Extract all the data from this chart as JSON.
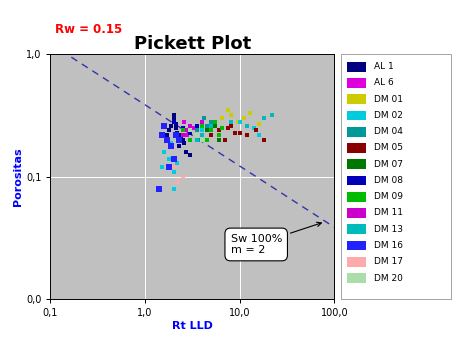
{
  "title": "Pickett Plot",
  "xlabel": "Rt LLD",
  "ylabel": "Porositas",
  "rw_label": "Rw = 0.15",
  "xlim": [
    0.1,
    100.0
  ],
  "ylim": [
    0.01,
    1.0
  ],
  "bg_color": "#c0c0c0",
  "fig_color": "#f0f0f0",
  "grid_color": "white",
  "dashed_line_color": "#3333aa",
  "annotation_text": "Sw 100%\nm = 2",
  "legend_entries": [
    {
      "label": "AL 1",
      "color": "#000080",
      "marker": "s"
    },
    {
      "label": "AL 6",
      "color": "#dd00dd",
      "marker": "s"
    },
    {
      "label": "DM 01",
      "color": "#cccc00",
      "marker": "s"
    },
    {
      "label": "DM 02",
      "color": "#00ccdd",
      "marker": "s"
    },
    {
      "label": "DM 04",
      "color": "#009999",
      "marker": "s"
    },
    {
      "label": "DM 05",
      "color": "#880000",
      "marker": "s"
    },
    {
      "label": "DM 07",
      "color": "#007700",
      "marker": "s"
    },
    {
      "label": "DM 08",
      "color": "#0000bb",
      "marker": "s"
    },
    {
      "label": "DM 09",
      "color": "#00bb00",
      "marker": "s"
    },
    {
      "label": "DM 11",
      "color": "#cc00cc",
      "marker": "s"
    },
    {
      "label": "DM 13",
      "color": "#00bbbb",
      "marker": "s"
    },
    {
      "label": "DM 16",
      "color": "#2222ff",
      "marker": "s"
    },
    {
      "label": "DM 17",
      "color": "#ffaaaa",
      "marker": "s"
    },
    {
      "label": "DM 20",
      "color": "#aaddaa",
      "marker": "s"
    }
  ],
  "scatter_groups": [
    {
      "key": "AL1",
      "color": "#000080",
      "marker": "s",
      "size": 10,
      "x": [
        2.1,
        2.3,
        2.0,
        2.5,
        1.9,
        2.2,
        2.4,
        2.0,
        2.6,
        1.8,
        2.1,
        2.3,
        2.7,
        2.0,
        2.4,
        3.0,
        1.7
      ],
      "y": [
        0.25,
        0.22,
        0.28,
        0.2,
        0.26,
        0.23,
        0.21,
        0.3,
        0.19,
        0.24,
        0.27,
        0.18,
        0.16,
        0.32,
        0.2,
        0.15,
        0.22
      ]
    },
    {
      "key": "AL6",
      "color": "#dd00dd",
      "marker": "s",
      "size": 10,
      "x": [
        2.5,
        2.8,
        3.0,
        3.2,
        2.6
      ],
      "y": [
        0.24,
        0.22,
        0.2,
        0.25,
        0.28
      ]
    },
    {
      "key": "DM01",
      "color": "#cccc00",
      "marker": "s",
      "size": 10,
      "x": [
        6.5,
        8.0,
        9.5,
        7.5,
        11.0,
        13.0,
        16.0
      ],
      "y": [
        0.3,
        0.32,
        0.28,
        0.35,
        0.3,
        0.33,
        0.27
      ]
    },
    {
      "key": "DM02",
      "color": "#00ccdd",
      "marker": "s",
      "size": 10,
      "x": [
        1.8,
        2.0,
        2.2,
        1.6,
        2.5,
        3.0,
        4.0,
        5.0,
        6.0,
        7.0,
        10.0,
        14.0,
        16.0,
        1.5,
        2.0,
        1.9
      ],
      "y": [
        0.14,
        0.11,
        0.13,
        0.16,
        0.22,
        0.25,
        0.24,
        0.26,
        0.22,
        0.2,
        0.28,
        0.25,
        0.22,
        0.12,
        0.08,
        0.19
      ]
    },
    {
      "key": "DM04",
      "color": "#009999",
      "marker": "s",
      "size": 10,
      "x": [
        3.5,
        4.0,
        4.5,
        5.0,
        3.8,
        4.2
      ],
      "y": [
        0.24,
        0.22,
        0.26,
        0.28,
        0.2,
        0.3
      ]
    },
    {
      "key": "DM05",
      "color": "#880000",
      "marker": "s",
      "size": 10,
      "x": [
        5.0,
        6.0,
        7.0,
        8.0,
        9.0,
        12.0,
        15.0,
        18.0,
        7.5,
        10.0
      ],
      "y": [
        0.22,
        0.24,
        0.2,
        0.26,
        0.23,
        0.22,
        0.24,
        0.2,
        0.25,
        0.23
      ]
    },
    {
      "key": "DM07",
      "color": "#007700",
      "marker": "s",
      "size": 10,
      "x": [
        2.5,
        3.0,
        3.5,
        4.0,
        4.5,
        5.5,
        6.0
      ],
      "y": [
        0.24,
        0.26,
        0.22,
        0.28,
        0.24,
        0.26,
        0.2
      ]
    },
    {
      "key": "DM08",
      "color": "#0000bb",
      "marker": "s",
      "size": 10,
      "x": [
        2.0,
        2.5,
        3.0,
        3.5,
        2.2
      ],
      "y": [
        0.28,
        0.25,
        0.23,
        0.26,
        0.22
      ]
    },
    {
      "key": "DM09",
      "color": "#00bb00",
      "marker": "s",
      "size": 10,
      "x": [
        2.2,
        2.5,
        3.0,
        3.5,
        4.0,
        5.0,
        5.5,
        6.0,
        4.5,
        6.5
      ],
      "y": [
        0.22,
        0.24,
        0.2,
        0.22,
        0.26,
        0.24,
        0.28,
        0.22,
        0.2,
        0.25
      ]
    },
    {
      "key": "DM11",
      "color": "#cc00cc",
      "marker": "s",
      "size": 10,
      "x": [
        2.5,
        3.0,
        3.5,
        4.0,
        2.8
      ],
      "y": [
        0.22,
        0.26,
        0.2,
        0.28,
        0.24
      ]
    },
    {
      "key": "DM13",
      "color": "#00bbbb",
      "marker": "s",
      "size": 10,
      "x": [
        3.0,
        4.0,
        5.0,
        8.0,
        12.0,
        18.0,
        22.0,
        3.5
      ],
      "y": [
        0.24,
        0.22,
        0.26,
        0.28,
        0.26,
        0.3,
        0.32,
        0.2
      ]
    },
    {
      "key": "DM16",
      "color": "#2222ff",
      "marker": "s",
      "size": 14,
      "x": [
        1.5,
        1.7,
        1.9,
        2.1,
        1.6,
        2.0,
        2.3,
        1.8,
        1.4
      ],
      "y": [
        0.22,
        0.2,
        0.18,
        0.22,
        0.26,
        0.14,
        0.2,
        0.12,
        0.08
      ]
    },
    {
      "key": "DM17",
      "color": "#ffaaaa",
      "marker": "s",
      "size": 10,
      "x": [
        2.0,
        2.5,
        2.2
      ],
      "y": [
        0.12,
        0.1,
        0.09
      ]
    },
    {
      "key": "DM20",
      "color": "#aaddaa",
      "marker": "s",
      "size": 10,
      "x": [
        3.0,
        3.5,
        4.0
      ],
      "y": [
        0.24,
        0.22,
        0.2
      ]
    }
  ],
  "rw": 0.15,
  "m": 2.0,
  "title_fontsize": 13,
  "label_fontsize": 8,
  "tick_fontsize": 7,
  "legend_fontsize": 6.5
}
